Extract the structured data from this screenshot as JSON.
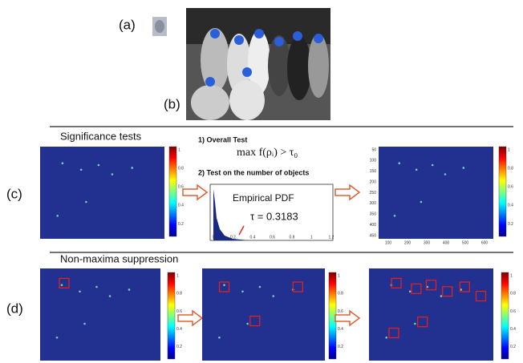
{
  "panel_labels": {
    "a": "(a)",
    "b": "(b)",
    "c": "(c)",
    "d": "(d)"
  },
  "section_c": {
    "title": "Significance tests",
    "test1": "1) Overall Test",
    "formula": "max f(ρᵢ) > τ₀",
    "test2": "2) Test on the number of objects",
    "pdf_title": "Empirical PDF",
    "tau": "τ = 0.3183",
    "pdf_xticks": [
      "0",
      "0.2",
      "0.4",
      "0.6",
      "0.8",
      "1",
      "1.2"
    ],
    "map_yticks": [
      "50",
      "100",
      "150",
      "200",
      "250",
      "300",
      "350",
      "400",
      "450"
    ],
    "map_xticks": [
      "100",
      "200",
      "300",
      "400",
      "500",
      "600"
    ]
  },
  "section_d": {
    "title": "Non-maxima suppression"
  },
  "colorbar_ticks": [
    "1",
    "0.8",
    "0.6",
    "0.4",
    "0.2"
  ]
}
